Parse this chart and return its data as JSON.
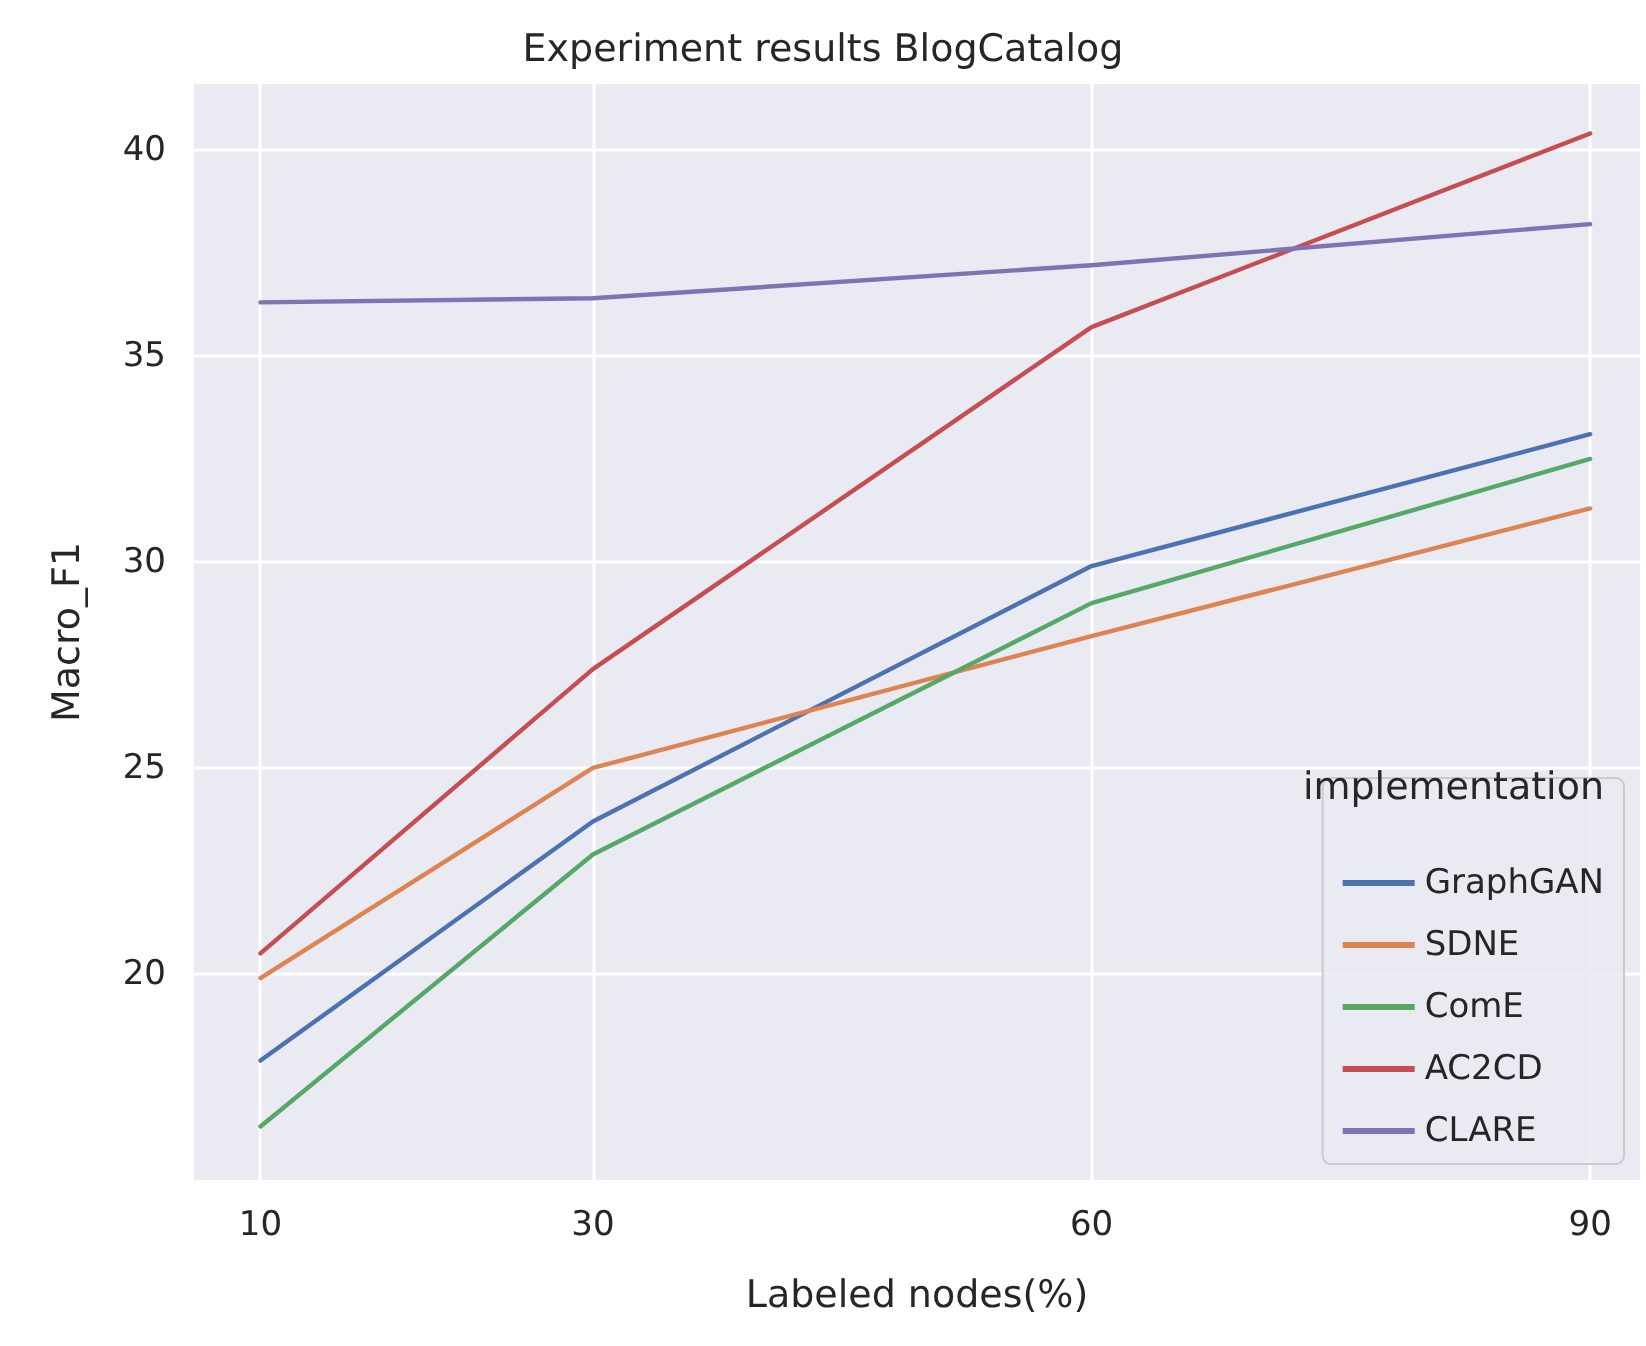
{
  "chart_data": {
    "type": "line",
    "title": "Experiment results BlogCatalog",
    "xlabel": "Labeled nodes(%)",
    "ylabel": "Macro_F1",
    "legend_title": "implementation",
    "x": [
      10,
      30,
      60,
      90
    ],
    "series": [
      {
        "name": "GraphGAN",
        "color": "#4c72b0",
        "values": [
          17.9,
          23.7,
          29.9,
          33.1
        ]
      },
      {
        "name": "SDNE",
        "color": "#dd8452",
        "values": [
          19.9,
          25.0,
          28.2,
          31.3
        ]
      },
      {
        "name": "ComE",
        "color": "#55a868",
        "values": [
          16.3,
          22.9,
          29.0,
          32.5
        ]
      },
      {
        "name": "AC2CD",
        "color": "#c44e52",
        "values": [
          20.5,
          27.4,
          35.7,
          40.4
        ]
      },
      {
        "name": "CLARE",
        "color": "#8172b3",
        "values": [
          36.3,
          36.4,
          37.2,
          38.2
        ]
      }
    ],
    "xlim": [
      6,
      93
    ],
    "xticks": [
      10,
      30,
      60,
      90
    ],
    "ylim": [
      15,
      41.6
    ],
    "yticks": [
      20,
      25,
      30,
      35,
      40
    ],
    "grid": true,
    "legend": "bottom right",
    "marker": "none",
    "line_style": "solid"
  }
}
